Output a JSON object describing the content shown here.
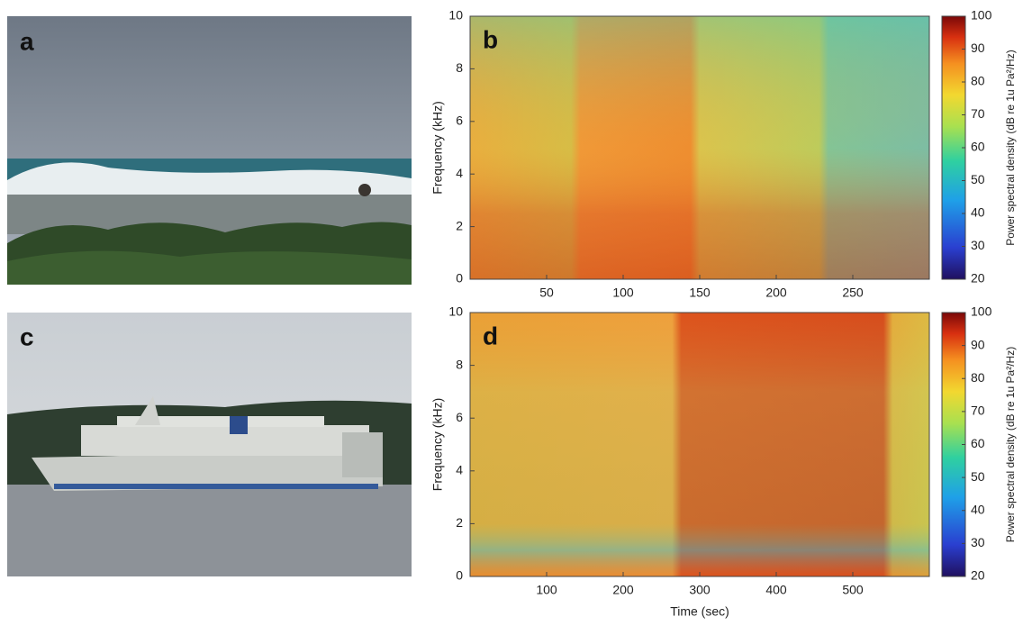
{
  "photos": [
    {
      "label": "a"
    },
    {
      "label": "c"
    }
  ],
  "spectrograms": [
    {
      "label": "b",
      "ylabel": "Frequency (kHz)",
      "xlim": [
        0,
        300
      ],
      "xticks": [
        50,
        100,
        150,
        200,
        250
      ],
      "ylim": [
        0,
        10
      ],
      "yticks": [
        0,
        2,
        4,
        6,
        8,
        10
      ],
      "colorbar": {
        "label": "Power spectral density (dB re 1u Pa²/Hz)",
        "lim": [
          20,
          100
        ],
        "ticks": [
          20,
          30,
          40,
          50,
          60,
          70,
          80,
          90,
          100
        ]
      }
    },
    {
      "label": "d",
      "ylabel": "Frequency (kHz)",
      "xlabel": "Time (sec)",
      "xlim": [
        0,
        600
      ],
      "xticks": [
        100,
        200,
        300,
        400,
        500
      ],
      "ylim": [
        0,
        10
      ],
      "yticks": [
        0,
        2,
        4,
        6,
        8,
        10
      ],
      "colorbar": {
        "label": "Power spectral density (dB re 1u Pa²/Hz)",
        "lim": [
          20,
          100
        ],
        "ticks": [
          20,
          30,
          40,
          50,
          60,
          70,
          80,
          90,
          100
        ]
      }
    }
  ]
}
